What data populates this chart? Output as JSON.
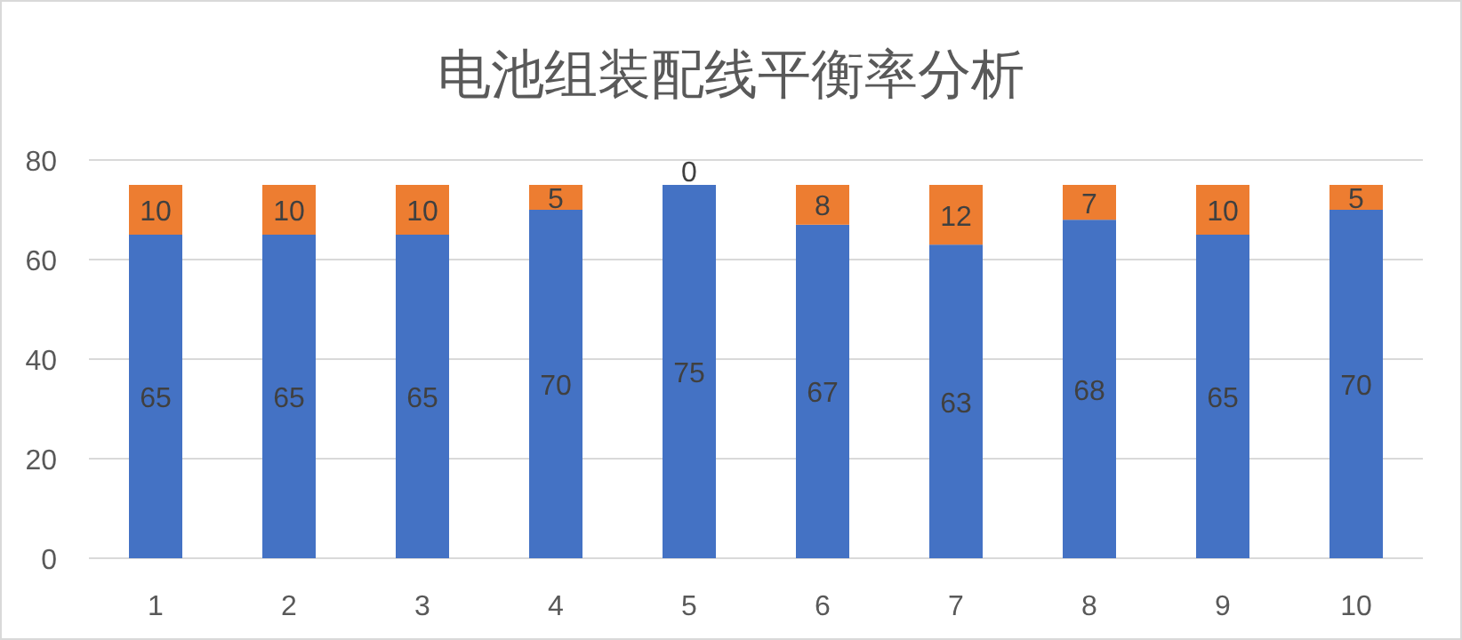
{
  "chart_data": {
    "type": "bar",
    "title": "电池组装配线平衡率分析",
    "categories": [
      "1",
      "2",
      "3",
      "4",
      "5",
      "6",
      "7",
      "8",
      "9",
      "10"
    ],
    "stacked": true,
    "series": [
      {
        "color": "#4472c4",
        "values": [
          65,
          65,
          65,
          70,
          75,
          67,
          63,
          68,
          65,
          70
        ]
      },
      {
        "color": "#ed7d31",
        "values": [
          10,
          10,
          10,
          5,
          0,
          8,
          12,
          7,
          10,
          5
        ]
      }
    ],
    "ylim": [
      0,
      80
    ],
    "yticks": [
      0,
      20,
      40,
      60,
      80
    ],
    "grid": "y",
    "data_labels": true
  }
}
